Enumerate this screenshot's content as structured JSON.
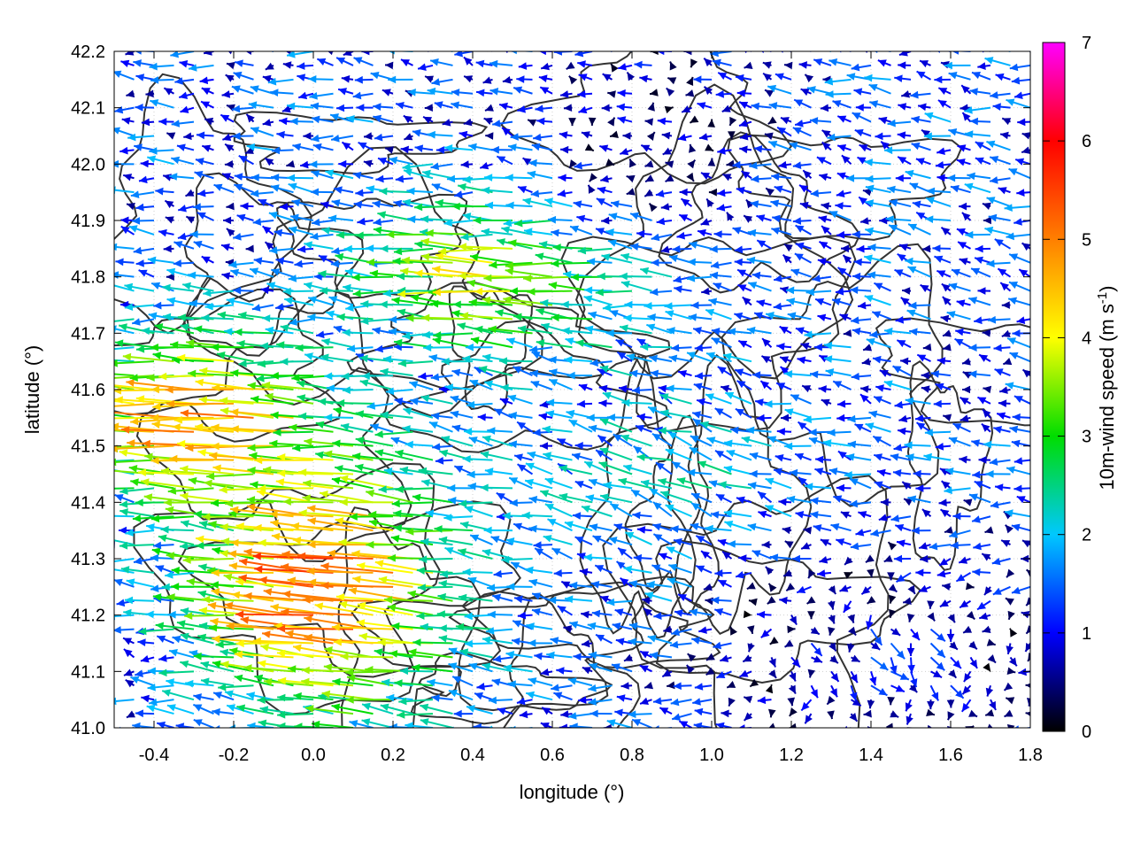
{
  "chart_data": {
    "type": "vector-field",
    "title": "",
    "xlabel": "longitude (°)",
    "ylabel": "latitude (°)",
    "xlim": [
      -0.5,
      1.8
    ],
    "ylim": [
      41.0,
      42.2
    ],
    "xticks": [
      -0.4,
      -0.2,
      0.0,
      0.2,
      0.4,
      0.6,
      0.8,
      1.0,
      1.2,
      1.4,
      1.6,
      1.8
    ],
    "xtick_labels": [
      "-0.4",
      "-0.2",
      "0.0",
      "0.2",
      "0.4",
      "0.6",
      "0.8",
      "1.0",
      "1.2",
      "1.4",
      "1.6",
      "1.8"
    ],
    "yticks": [
      41.0,
      41.1,
      41.2,
      41.3,
      41.4,
      41.5,
      41.6,
      41.7,
      41.8,
      41.9,
      42.0,
      42.1,
      42.2
    ],
    "ytick_labels": [
      "41.0",
      "41.1",
      "41.2",
      "41.3",
      "41.4",
      "41.5",
      "41.6",
      "41.7",
      "41.8",
      "41.9",
      "42.0",
      "42.1",
      "42.2"
    ],
    "grid": true,
    "colorbar": {
      "label": "10m-wind speed (m s",
      "label_superscript": "-1",
      "label_close": ")",
      "range": [
        0,
        7
      ],
      "ticks": [
        "0",
        "1",
        "2",
        "3",
        "4",
        "5",
        "6",
        "7"
      ],
      "palette": [
        "#000000",
        "#0000ff",
        "#00c8ff",
        "#00dd00",
        "#ffff00",
        "#ff7f00",
        "#ff0000",
        "#ff00ff"
      ]
    },
    "wind_regions": [
      {
        "lon": [
          -0.5,
          0.0
        ],
        "lat": [
          41.45,
          41.65
        ],
        "u": -4.8,
        "v": 0.1
      },
      {
        "lon": [
          -0.2,
          0.35
        ],
        "lat": [
          41.05,
          41.45
        ],
        "u": -5.2,
        "v": 0.5
      },
      {
        "lon": [
          0.2,
          0.8
        ],
        "lat": [
          41.7,
          41.9
        ],
        "u": -3.8,
        "v": 0.2
      },
      {
        "lon": [
          0.5,
          1.3
        ],
        "lat": [
          41.25,
          41.6
        ],
        "u": -1.8,
        "v": 0.6
      },
      {
        "lon": [
          1.1,
          1.8
        ],
        "lat": [
          41.0,
          41.25
        ],
        "u": 0.7,
        "v": -0.8
      },
      {
        "lon": [
          0.6,
          1.1
        ],
        "lat": [
          41.9,
          42.2
        ],
        "u": -0.3,
        "v": 0.1
      },
      {
        "lon": [
          1.3,
          1.8
        ],
        "lat": [
          41.6,
          42.1
        ],
        "u": -1.2,
        "v": 0.3
      }
    ],
    "contour_levels": 5
  }
}
